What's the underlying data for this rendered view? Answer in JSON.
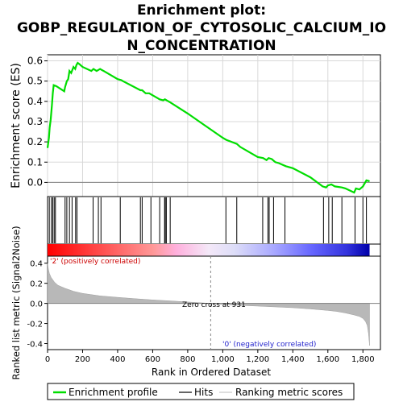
{
  "chart_data": {
    "type": "line",
    "title_lines": [
      "Enrichment plot:",
      "GOBP_REGULATION_OF_CYTOSOLIC_CALCIUM_IO",
      "N_CONCENTRATION"
    ],
    "top_panel": {
      "ylabel": "Enrichment score (ES)",
      "ylim": [
        -0.07,
        0.63
      ],
      "yticks": [
        "0.0",
        "0.1",
        "0.2",
        "0.3",
        "0.4",
        "0.5",
        "0.6"
      ],
      "ytick_values": [
        0.0,
        0.1,
        0.2,
        0.3,
        0.4,
        0.5,
        0.6
      ],
      "series_name": "Enrichment profile",
      "series_color": "#00ee00",
      "grid": true,
      "x": [
        0,
        8,
        12,
        18,
        25,
        30,
        35,
        50,
        95,
        100,
        110,
        118,
        125,
        135,
        148,
        158,
        165,
        172,
        180,
        200,
        250,
        262,
        280,
        300,
        310,
        320,
        400,
        420,
        430,
        530,
        540,
        560,
        580,
        600,
        620,
        640,
        660,
        670,
        680,
        690,
        700,
        800,
        900,
        1000,
        1020,
        1080,
        1100,
        1200,
        1230,
        1250,
        1262,
        1280,
        1300,
        1320,
        1360,
        1400,
        1500,
        1570,
        1590,
        1600,
        1620,
        1640,
        1680,
        1700,
        1750,
        1760,
        1780,
        1800,
        1820,
        1830,
        1838
      ],
      "y": [
        0.17,
        0.22,
        0.27,
        0.31,
        0.38,
        0.44,
        0.48,
        0.475,
        0.45,
        0.47,
        0.5,
        0.51,
        0.55,
        0.54,
        0.57,
        0.56,
        0.58,
        0.59,
        0.585,
        0.57,
        0.55,
        0.56,
        0.55,
        0.56,
        0.555,
        0.55,
        0.51,
        0.505,
        0.5,
        0.455,
        0.455,
        0.44,
        0.44,
        0.43,
        0.42,
        0.41,
        0.405,
        0.41,
        0.405,
        0.4,
        0.395,
        0.34,
        0.28,
        0.22,
        0.21,
        0.19,
        0.175,
        0.125,
        0.12,
        0.11,
        0.12,
        0.115,
        0.1,
        0.095,
        0.08,
        0.07,
        0.025,
        -0.02,
        -0.025,
        -0.015,
        -0.01,
        -0.02,
        -0.025,
        -0.03,
        -0.05,
        -0.03,
        -0.035,
        -0.02,
        0.01,
        0.008,
        0.005
      ]
    },
    "hits": [
      10,
      22,
      30,
      38,
      45,
      100,
      110,
      125,
      140,
      160,
      168,
      260,
      290,
      305,
      415,
      530,
      540,
      590,
      640,
      668,
      672,
      678,
      700,
      1018,
      1080,
      1228,
      1258,
      1265,
      1290,
      1355,
      1575,
      1605,
      1625,
      1680,
      1755,
      1800,
      1820
    ],
    "heatmap_legend": {
      "positive_label": "'2' (positively correlated)",
      "negative_label": "'0' (negatively correlated)"
    },
    "bottom_panel": {
      "ylabel": "Ranked list metric (Signal2Noise)",
      "xlabel": "Rank in Ordered Dataset",
      "ylim": [
        -0.46,
        0.47
      ],
      "yticks": [
        "-0.4",
        "-0.2",
        "0.0",
        "0.2",
        "0.4"
      ],
      "ytick_values": [
        -0.4,
        -0.2,
        0.0,
        0.2,
        0.4
      ],
      "zero_cross_label": "Zero cross at 931",
      "zero_cross": 931,
      "metric_x": [
        0,
        5,
        10,
        20,
        40,
        60,
        100,
        150,
        200,
        300,
        400,
        500,
        600,
        700,
        800,
        931,
        1000,
        1100,
        1200,
        1300,
        1400,
        1500,
        1600,
        1650,
        1700,
        1750,
        1780,
        1800,
        1815,
        1825,
        1832,
        1838
      ],
      "metric_y": [
        0.4,
        0.34,
        0.3,
        0.26,
        0.21,
        0.18,
        0.15,
        0.12,
        0.1,
        0.075,
        0.06,
        0.047,
        0.035,
        0.025,
        0.014,
        0.0,
        -0.01,
        -0.02,
        -0.027,
        -0.035,
        -0.043,
        -0.055,
        -0.07,
        -0.08,
        -0.095,
        -0.115,
        -0.13,
        -0.15,
        -0.18,
        -0.22,
        -0.3,
        -0.42
      ]
    },
    "xlim": [
      0,
      1900
    ],
    "xticks": [
      "0",
      "200",
      "400",
      "600",
      "800",
      "1,000",
      "1,200",
      "1,400",
      "1,600",
      "1,800"
    ],
    "xtick_values": [
      0,
      200,
      400,
      600,
      800,
      1000,
      1200,
      1400,
      1600,
      1800
    ],
    "n_genes": 1838,
    "legend": {
      "items": [
        "Enrichment profile",
        "Hits",
        "Ranking metric scores"
      ],
      "placement": "bottom"
    }
  }
}
